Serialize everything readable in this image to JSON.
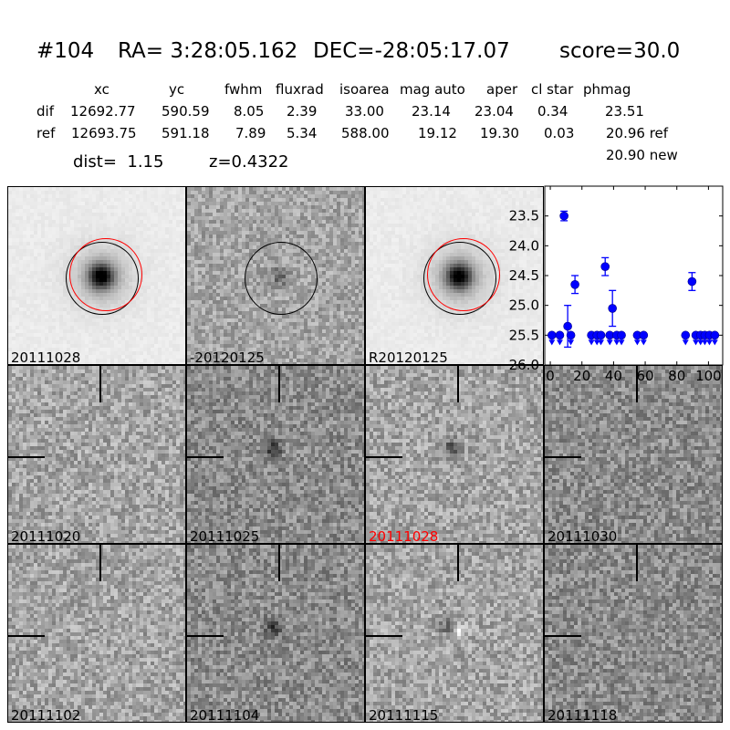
{
  "header": {
    "id": "#104",
    "ra": "RA= 3:28:05.162",
    "dec": "DEC=-28:05:17.07",
    "score": "score=30.0"
  },
  "table": {
    "columns": [
      "xc",
      "yc",
      "fwhm",
      "fluxrad",
      "isoarea",
      "mag auto",
      "aper",
      "cl star",
      "phmag"
    ],
    "rows": [
      {
        "label": "dif",
        "values": [
          "12692.77",
          "590.59",
          "8.05",
          "2.39",
          "33.00",
          "23.14",
          "23.04",
          "0.34",
          "23.51"
        ]
      },
      {
        "label": "ref",
        "values": [
          "12693.75",
          "591.18",
          "7.89",
          "5.34",
          "588.00",
          "19.12",
          "19.30",
          "0.03",
          "20.96 ref"
        ]
      }
    ],
    "extra_phmag": "20.90 new",
    "dist": "dist=  1.15",
    "z": "z=0.4322"
  },
  "stamps": [
    {
      "label": "20111028",
      "label_color": "#000000"
    },
    {
      "label": "-20120125",
      "label_color": "#000000"
    },
    {
      "label": "R20120125",
      "label_color": "#000000"
    },
    {
      "label": "20111020",
      "label_color": "#000000"
    },
    {
      "label": "20111025",
      "label_color": "#000000"
    },
    {
      "label": "20111028",
      "label_color": "#ff0000"
    },
    {
      "label": "20111030",
      "label_color": "#000000"
    },
    {
      "label": "20111102",
      "label_color": "#000000"
    },
    {
      "label": "20111104",
      "label_color": "#000000"
    },
    {
      "label": "20111115",
      "label_color": "#000000"
    },
    {
      "label": "20111118",
      "label_color": "#000000"
    }
  ],
  "chart_data": {
    "type": "scatter",
    "xlim": [
      -3.5,
      109
    ],
    "ylim": [
      26.0,
      23.0
    ],
    "y_inverted": true,
    "x_ticks": [
      0,
      20,
      40,
      60,
      80,
      100
    ],
    "y_ticks": [
      "23.5",
      "24.0",
      "24.5",
      "25.0",
      "25.5",
      "26.0"
    ],
    "color": "#0000ff",
    "detections": [
      {
        "x": 8.7,
        "y": 23.5,
        "err": 0.08
      },
      {
        "x": 11,
        "y": 25.35,
        "err": 0.35
      },
      {
        "x": 15.6,
        "y": 24.65,
        "err": 0.15
      },
      {
        "x": 34.7,
        "y": 24.35,
        "err": 0.15
      },
      {
        "x": 39.3,
        "y": 25.05,
        "err": 0.3
      },
      {
        "x": 89.6,
        "y": 24.6,
        "err": 0.15
      }
    ],
    "upper_limits": {
      "y": 25.5,
      "x": [
        1,
        6,
        13,
        26,
        29.5,
        32,
        37.6,
        42,
        45,
        55,
        59,
        85.5,
        92,
        95,
        97.7,
        100.6,
        104
      ]
    }
  }
}
